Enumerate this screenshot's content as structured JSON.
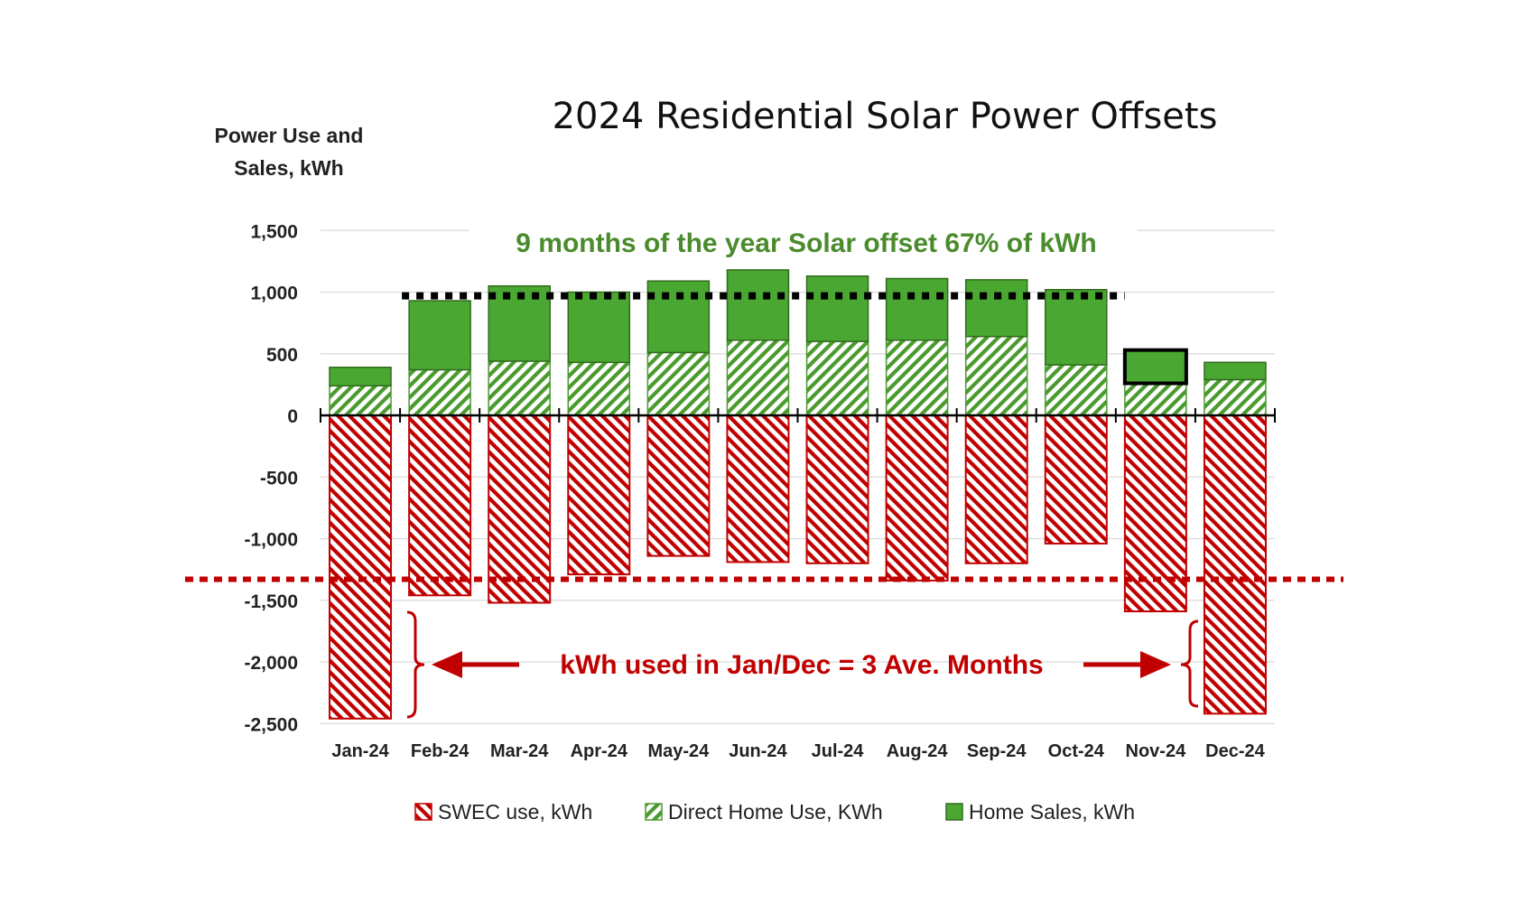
{
  "chart_data": {
    "type": "bar",
    "title": "2024 Residential Solar Power Offsets",
    "ylabel_lines": [
      "Power Use and",
      "Sales, kWh"
    ],
    "ylim": [
      -2500,
      1500
    ],
    "yticks": [
      1500,
      1000,
      500,
      0,
      -500,
      -1000,
      -1500,
      -2000,
      -2500
    ],
    "ytick_labels": [
      "1,500",
      "1,000",
      "500",
      "0",
      "-500",
      "-1,000",
      "-1,500",
      "-2,000",
      "-2,500"
    ],
    "categories": [
      "Jan-24",
      "Feb-24",
      "Mar-24",
      "Apr-24",
      "May-24",
      "Jun-24",
      "Jul-24",
      "Aug-24",
      "Sep-24",
      "Oct-24",
      "Nov-24",
      "Dec-24"
    ],
    "series": [
      {
        "name": "SWEC use, kWh",
        "color": "#c00000",
        "pattern": "diagonal-stripes",
        "values": [
          -2460,
          -1460,
          -1520,
          -1290,
          -1140,
          -1190,
          -1200,
          -1340,
          -1200,
          -1040,
          -1590,
          -2420
        ]
      },
      {
        "name": "Direct Home Use, KWh",
        "color": "#4a9a2e",
        "pattern": "reverse-diagonal-stripes",
        "values": [
          240,
          370,
          440,
          430,
          510,
          610,
          600,
          610,
          640,
          410,
          260,
          290
        ]
      },
      {
        "name": "Home Sales, kWh",
        "color": "#4aa832",
        "pattern": "solid",
        "values": [
          150,
          560,
          610,
          570,
          580,
          570,
          530,
          500,
          460,
          610,
          270,
          140
        ]
      }
    ],
    "highlighted_category": "Nov-24",
    "reference_lines": [
      {
        "value": 970,
        "color": "#000000",
        "style": "dotted",
        "from": "Feb-24",
        "to": "Oct-24"
      },
      {
        "value": -1330,
        "color": "#c00000",
        "style": "dotted",
        "from": "edge",
        "to": "edge"
      }
    ],
    "annotations": {
      "green_text": "9 months of the year Solar offset 67% of kWh",
      "red_text": "kWh used in Jan/Dec = 3 Ave. Months"
    },
    "grid": true,
    "legend_position": "bottom"
  }
}
